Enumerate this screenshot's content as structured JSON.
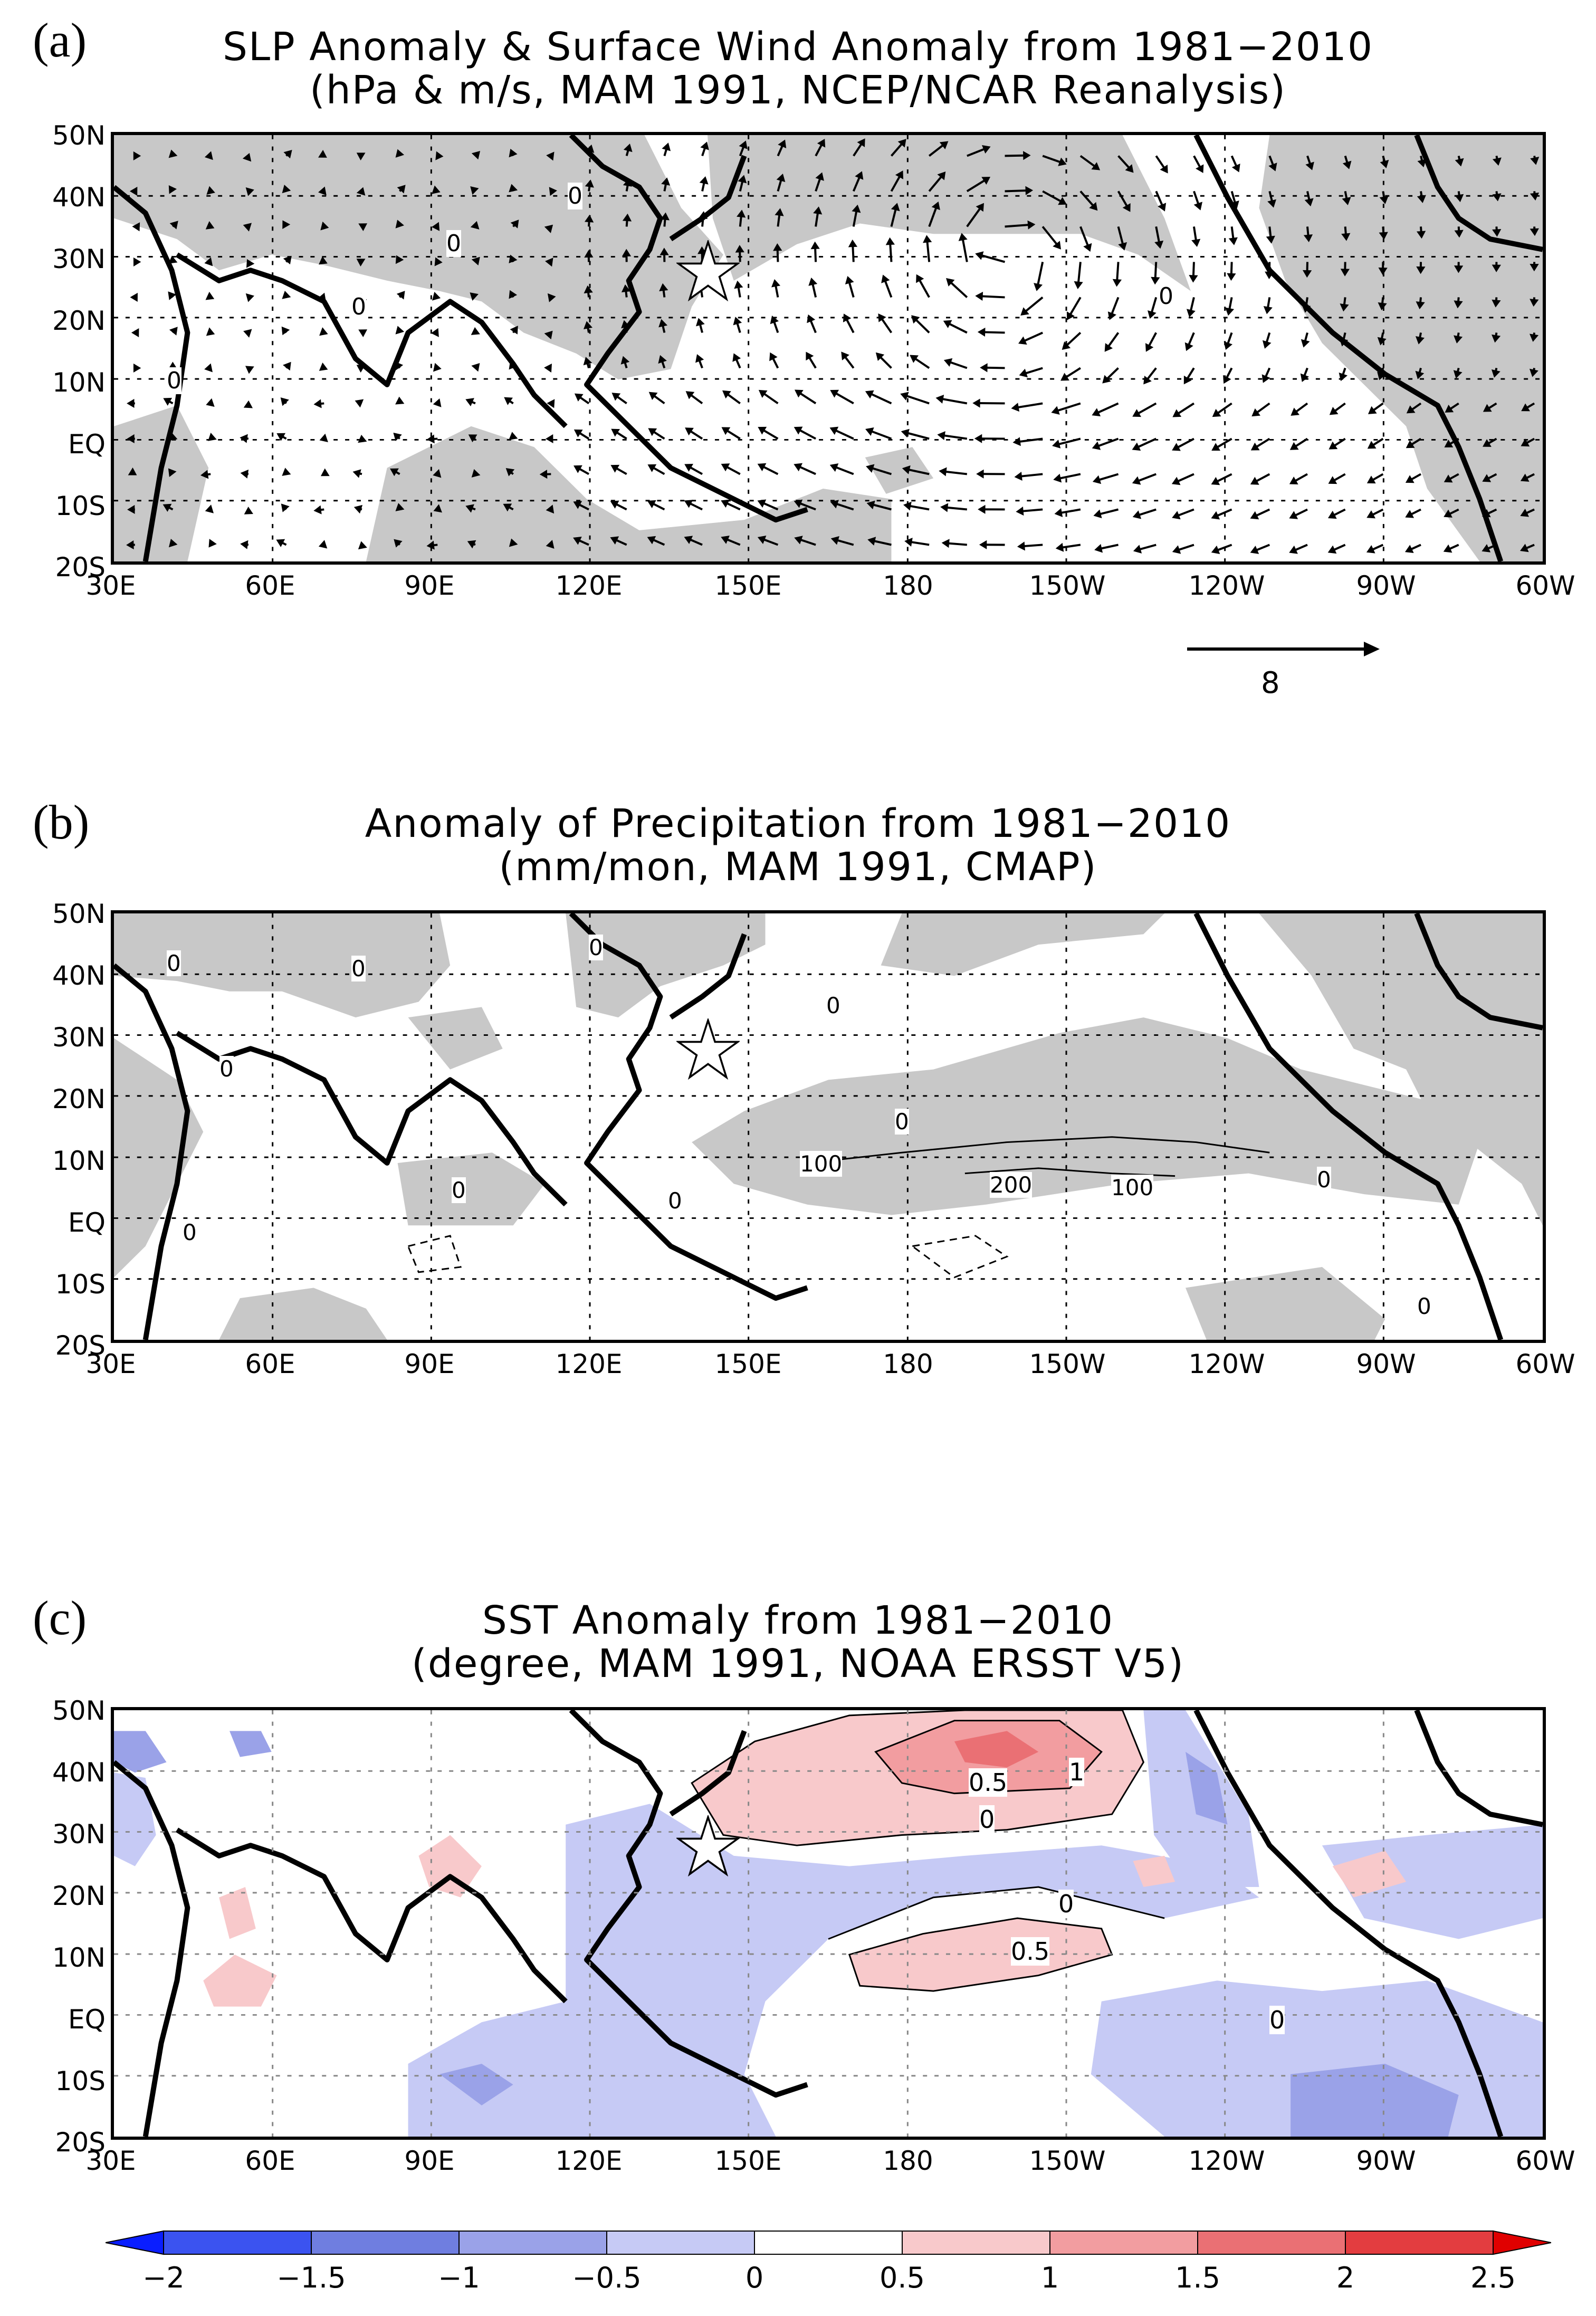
{
  "panel_a": {
    "label": "(a)",
    "title_line1": "SLP Anomaly & Surface Wind Anomaly from 1981−2010",
    "title_line2": "(hPa & m/s, MAM 1991, NCEP/NCAR Reanalysis)",
    "contour_labels": [
      "0",
      "0",
      "0",
      "0",
      "0"
    ],
    "ref_vector_label": "8",
    "ref_vector_value": 8
  },
  "panel_b": {
    "label": "(b)",
    "title_line1": "Anomaly of Precipitation from 1981−2010",
    "title_line2": "(mm/mon, MAM 1991, CMAP)",
    "contour_labels": [
      "0",
      "0",
      "0",
      "0",
      "0",
      "0",
      "0",
      "0",
      "100",
      "200",
      "100",
      "0",
      "0",
      "0"
    ]
  },
  "panel_c": {
    "label": "(c)",
    "title_line1": "SST Anomaly from 1981−2010",
    "title_line2": "(degree, MAM 1991, NOAA ERSST V5)",
    "contour_labels": [
      "0.5",
      "1",
      "0",
      "0",
      "0.5",
      "0"
    ]
  },
  "axes": {
    "lat_ticks": [
      "50N",
      "40N",
      "30N",
      "20N",
      "10N",
      "EQ",
      "10S",
      "20S"
    ],
    "lon_ticks": [
      "30E",
      "60E",
      "90E",
      "120E",
      "150E",
      "180",
      "150W",
      "120W",
      "90W",
      "60W"
    ]
  },
  "colorbar": {
    "ticks": [
      "−2",
      "−1.5",
      "−1",
      "−0.5",
      "0",
      "0.5",
      "1",
      "1.5",
      "2",
      "2.5"
    ],
    "colors": [
      "#0a1eff",
      "#3b53f0",
      "#6f7ee0",
      "#9aa2e8",
      "#c6caf5",
      "#ffffff",
      "#f8c9cb",
      "#f29da0",
      "#ea7074",
      "#e33d40",
      "#e00000"
    ]
  },
  "colors": {
    "gray_fill": "#c8c8c8",
    "land_outline": "#000000",
    "blue_light": "#c6caf5",
    "blue_mid": "#9aa2e8",
    "pink_light": "#f8c9cb",
    "pink_mid": "#f29da0",
    "red_mid": "#ea7074"
  },
  "marker": {
    "type": "star",
    "icon": "star-icon"
  }
}
